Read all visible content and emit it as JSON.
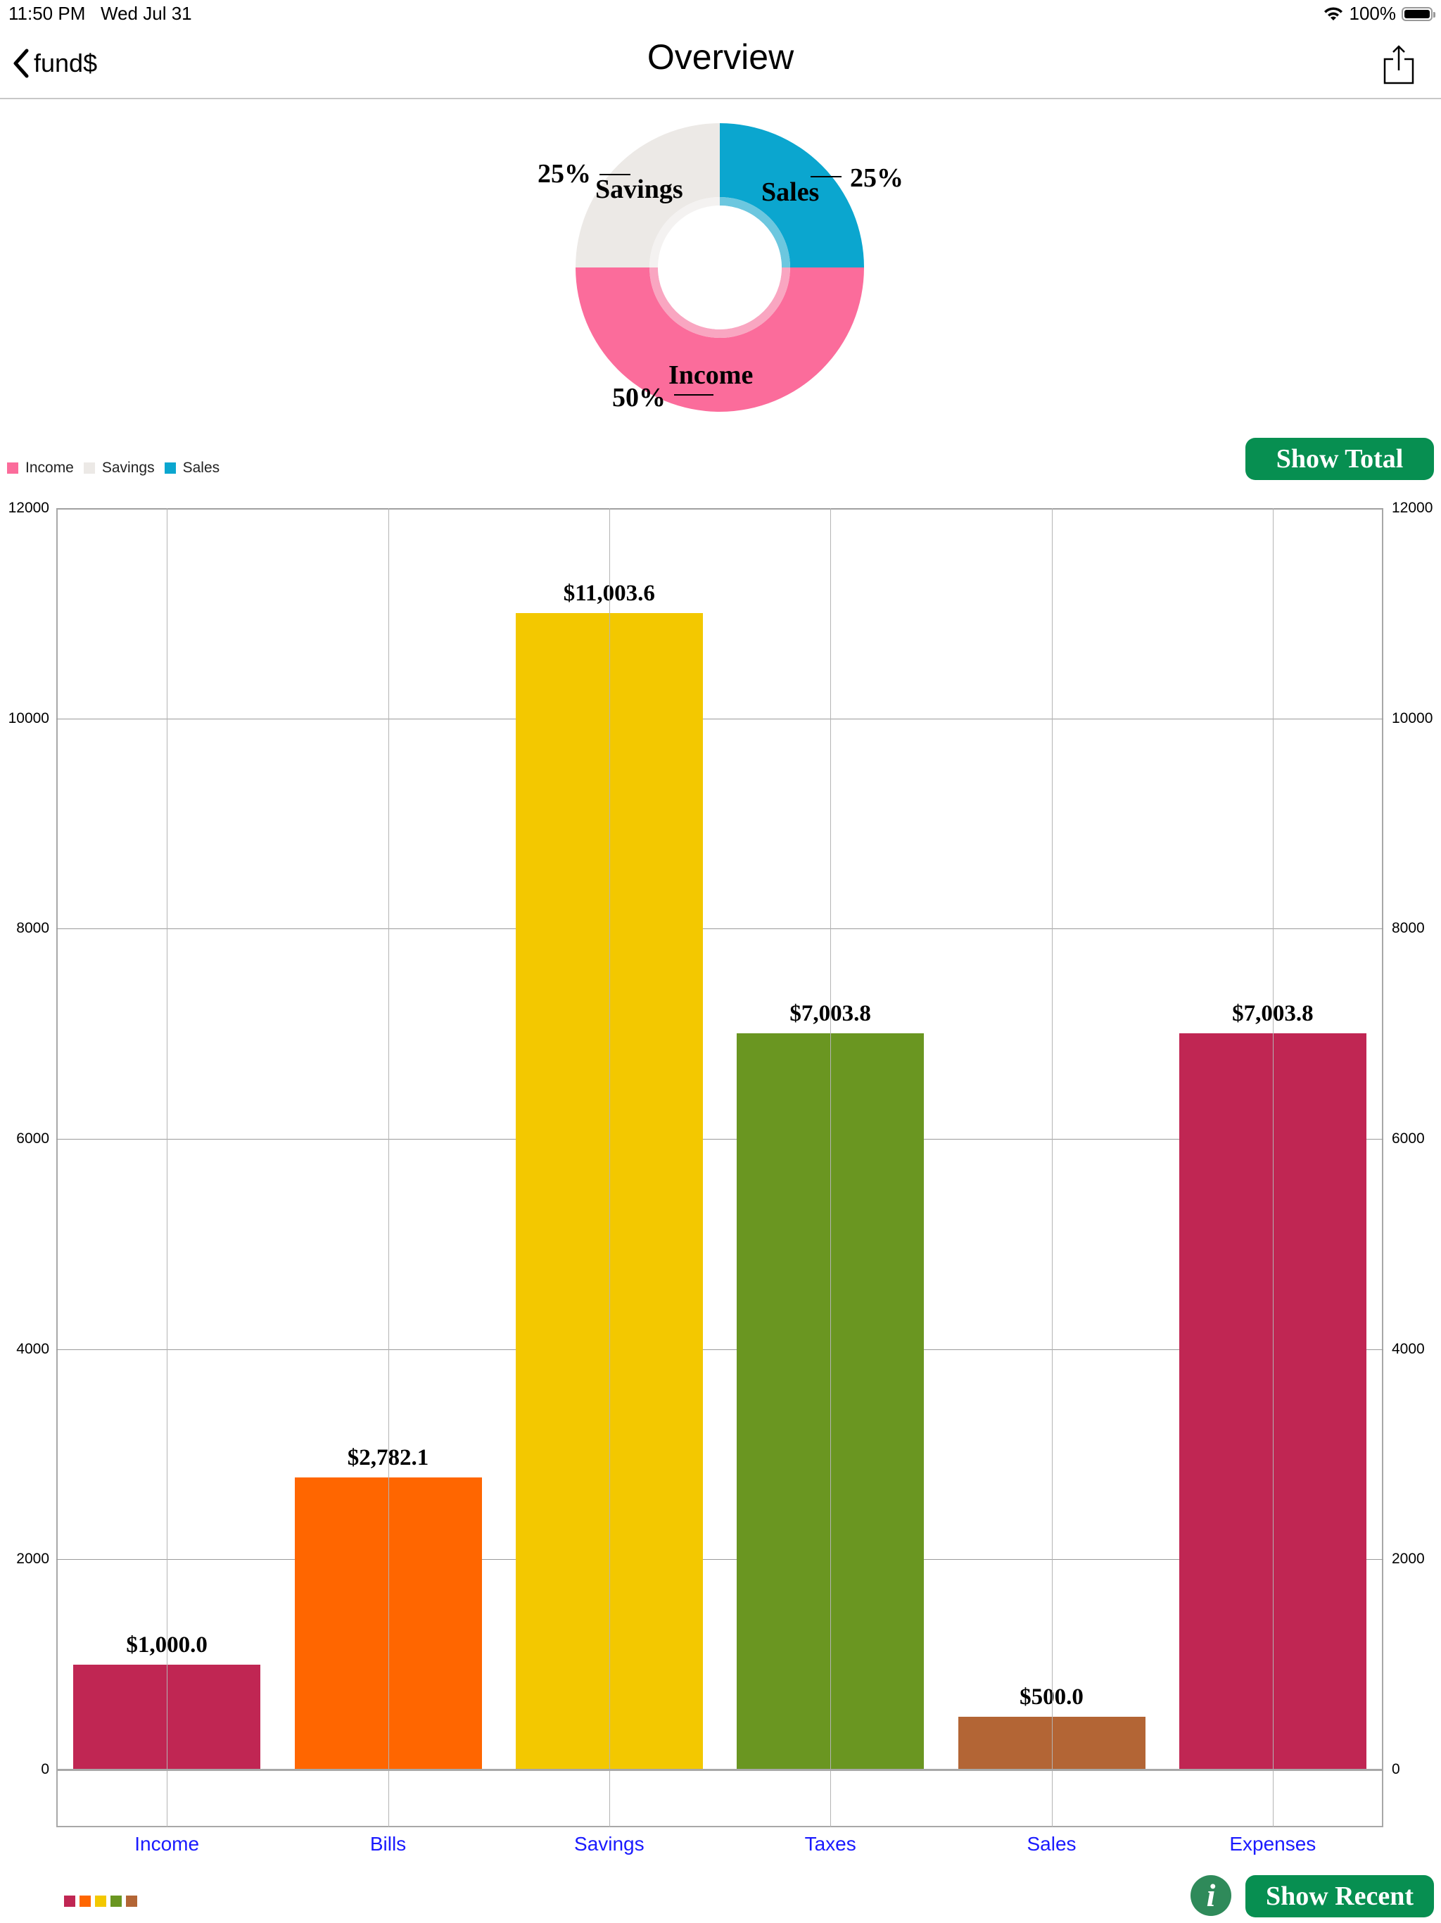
{
  "status_bar": {
    "time": "11:50 PM",
    "date": "Wed Jul 31",
    "battery": "100%",
    "icons": [
      "wifi-icon",
      "battery-icon"
    ]
  },
  "nav": {
    "back_label": "fund$",
    "title": "Overview",
    "back_icon": "chevron-left-icon",
    "share_icon": "share-icon"
  },
  "buttons": {
    "show_total": "Show Total",
    "show_recent": "Show Recent",
    "info": "i"
  },
  "colors": {
    "button_green": "#078f51",
    "info_green": "#2f8a5a",
    "axis_label_blue": "#1a1aff"
  },
  "chart_data": [
    {
      "type": "pie",
      "variant": "donut",
      "title": "",
      "categories": [
        "Income",
        "Savings",
        "Sales"
      ],
      "values": [
        50,
        25,
        25
      ],
      "labels": [
        "50%",
        "25%",
        "25%"
      ],
      "colors": [
        "#fb6c9b",
        "#ece9e6",
        "#0ba6cf"
      ],
      "legend": {
        "position": "top-left",
        "entries": [
          {
            "label": "Income",
            "color": "#fb6c9b"
          },
          {
            "label": "Savings",
            "color": "#ece9e6"
          },
          {
            "label": "Sales",
            "color": "#0ba6cf"
          }
        ]
      }
    },
    {
      "type": "bar",
      "title": "",
      "xlabel": "",
      "ylabel": "",
      "categories": [
        "Income",
        "Bills",
        "Savings",
        "Taxes",
        "Sales",
        "Expenses"
      ],
      "values": [
        1000.0,
        2782.1,
        11003.6,
        7003.8,
        500.0,
        7003.8
      ],
      "value_labels": [
        "$1,000.0",
        "$2,782.1",
        "$11,003.6",
        "$7,003.8",
        "$500.0",
        "$7,003.8"
      ],
      "colors": [
        "#c02653",
        "#ff6600",
        "#f3c800",
        "#6a9621",
        "#b36535",
        "#c02653"
      ],
      "ylim": [
        0,
        12000
      ],
      "yticks": [
        "0",
        "2000",
        "4000",
        "6000",
        "8000",
        "10000",
        "12000"
      ],
      "ytick_values": [
        0,
        2000,
        4000,
        6000,
        8000,
        10000,
        12000
      ],
      "y_axis_both_sides": true,
      "grid": true,
      "legend_swatches": [
        "#c02653",
        "#ff6600",
        "#f3c800",
        "#6a9621",
        "#b36535"
      ]
    }
  ]
}
